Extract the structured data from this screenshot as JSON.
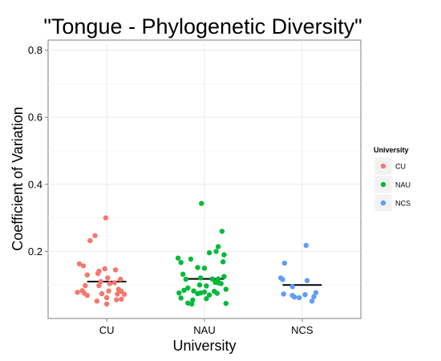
{
  "chart_data": {
    "type": "scatter",
    "title": "\"Tongue - Phylogenetic Diversity\"",
    "xlabel": "University",
    "ylabel": "Coefficient of Variation",
    "categories": [
      "CU",
      "NAU",
      "NCS"
    ],
    "ylim": [
      0.0,
      0.83
    ],
    "yticks": [
      0.2,
      0.4,
      0.6,
      0.8
    ],
    "ytick_labels": [
      "0.2",
      "0.4",
      "0.6",
      "0.8"
    ],
    "grid": true,
    "legend": {
      "title": "University",
      "placement": "right",
      "entries": [
        {
          "label": "CU",
          "color": "#f8766d"
        },
        {
          "label": "NAU",
          "color": "#00ba38"
        },
        {
          "label": "NCS",
          "color": "#619cff"
        }
      ]
    },
    "series": [
      {
        "name": "CU",
        "color": "#f8766d",
        "median": 0.11,
        "points": [
          {
            "x": 0.99,
            "y": 0.3
          },
          {
            "x": 0.88,
            "y": 0.247
          },
          {
            "x": 0.83,
            "y": 0.232
          },
          {
            "x": 0.72,
            "y": 0.163
          },
          {
            "x": 0.76,
            "y": 0.157
          },
          {
            "x": 0.98,
            "y": 0.148
          },
          {
            "x": 1.09,
            "y": 0.145
          },
          {
            "x": 0.92,
            "y": 0.141
          },
          {
            "x": 0.91,
            "y": 0.134
          },
          {
            "x": 0.8,
            "y": 0.13
          },
          {
            "x": 1.01,
            "y": 0.121
          },
          {
            "x": 1.14,
            "y": 0.117
          },
          {
            "x": 0.94,
            "y": 0.11
          },
          {
            "x": 1.08,
            "y": 0.107
          },
          {
            "x": 1.03,
            "y": 0.104
          },
          {
            "x": 0.78,
            "y": 0.098
          },
          {
            "x": 0.92,
            "y": 0.098
          },
          {
            "x": 1.12,
            "y": 0.087
          },
          {
            "x": 0.75,
            "y": 0.083
          },
          {
            "x": 1.02,
            "y": 0.082
          },
          {
            "x": 1.15,
            "y": 0.081
          },
          {
            "x": 0.7,
            "y": 0.078
          },
          {
            "x": 0.77,
            "y": 0.075
          },
          {
            "x": 0.95,
            "y": 0.074
          },
          {
            "x": 1.11,
            "y": 0.073
          },
          {
            "x": 1.18,
            "y": 0.072
          },
          {
            "x": 0.8,
            "y": 0.069
          },
          {
            "x": 1.0,
            "y": 0.062
          },
          {
            "x": 1.15,
            "y": 0.058
          },
          {
            "x": 1.1,
            "y": 0.056
          },
          {
            "x": 0.9,
            "y": 0.052
          },
          {
            "x": 1.0,
            "y": 0.043
          }
        ]
      },
      {
        "name": "NAU",
        "color": "#00ba38",
        "median": 0.118,
        "points": [
          {
            "x": 1.97,
            "y": 0.343
          },
          {
            "x": 2.18,
            "y": 0.26
          },
          {
            "x": 2.14,
            "y": 0.214
          },
          {
            "x": 2.12,
            "y": 0.2
          },
          {
            "x": 2.05,
            "y": 0.196
          },
          {
            "x": 2.2,
            "y": 0.19
          },
          {
            "x": 1.73,
            "y": 0.18
          },
          {
            "x": 1.86,
            "y": 0.177
          },
          {
            "x": 2.19,
            "y": 0.169
          },
          {
            "x": 1.76,
            "y": 0.167
          },
          {
            "x": 1.93,
            "y": 0.152
          },
          {
            "x": 2.0,
            "y": 0.15
          },
          {
            "x": 1.78,
            "y": 0.132
          },
          {
            "x": 2.2,
            "y": 0.125
          },
          {
            "x": 1.96,
            "y": 0.121
          },
          {
            "x": 2.08,
            "y": 0.118
          },
          {
            "x": 2.14,
            "y": 0.118
          },
          {
            "x": 1.81,
            "y": 0.117
          },
          {
            "x": 2.11,
            "y": 0.108
          },
          {
            "x": 2.14,
            "y": 0.106
          },
          {
            "x": 2.17,
            "y": 0.104
          },
          {
            "x": 1.95,
            "y": 0.1
          },
          {
            "x": 2.02,
            "y": 0.097
          },
          {
            "x": 1.83,
            "y": 0.091
          },
          {
            "x": 2.22,
            "y": 0.087
          },
          {
            "x": 1.79,
            "y": 0.084
          },
          {
            "x": 1.89,
            "y": 0.082
          },
          {
            "x": 2.1,
            "y": 0.081
          },
          {
            "x": 2.0,
            "y": 0.079
          },
          {
            "x": 1.96,
            "y": 0.076
          },
          {
            "x": 2.13,
            "y": 0.075
          },
          {
            "x": 1.74,
            "y": 0.076
          },
          {
            "x": 1.93,
            "y": 0.074
          },
          {
            "x": 2.05,
            "y": 0.07
          },
          {
            "x": 1.76,
            "y": 0.061
          },
          {
            "x": 2.02,
            "y": 0.059
          },
          {
            "x": 1.88,
            "y": 0.055
          },
          {
            "x": 1.83,
            "y": 0.046
          },
          {
            "x": 2.22,
            "y": 0.045
          },
          {
            "x": 1.87,
            "y": 0.043
          }
        ]
      },
      {
        "name": "NCS",
        "color": "#619cff",
        "median": 0.1,
        "points": [
          {
            "x": 3.04,
            "y": 0.218
          },
          {
            "x": 2.82,
            "y": 0.165
          },
          {
            "x": 2.78,
            "y": 0.121
          },
          {
            "x": 2.8,
            "y": 0.116
          },
          {
            "x": 3.05,
            "y": 0.113
          },
          {
            "x": 2.9,
            "y": 0.095
          },
          {
            "x": 2.81,
            "y": 0.073
          },
          {
            "x": 3.14,
            "y": 0.077
          },
          {
            "x": 3.03,
            "y": 0.071
          },
          {
            "x": 2.9,
            "y": 0.069
          },
          {
            "x": 2.92,
            "y": 0.064
          },
          {
            "x": 3.12,
            "y": 0.065
          },
          {
            "x": 2.97,
            "y": 0.062
          },
          {
            "x": 3.1,
            "y": 0.052
          }
        ]
      }
    ]
  }
}
